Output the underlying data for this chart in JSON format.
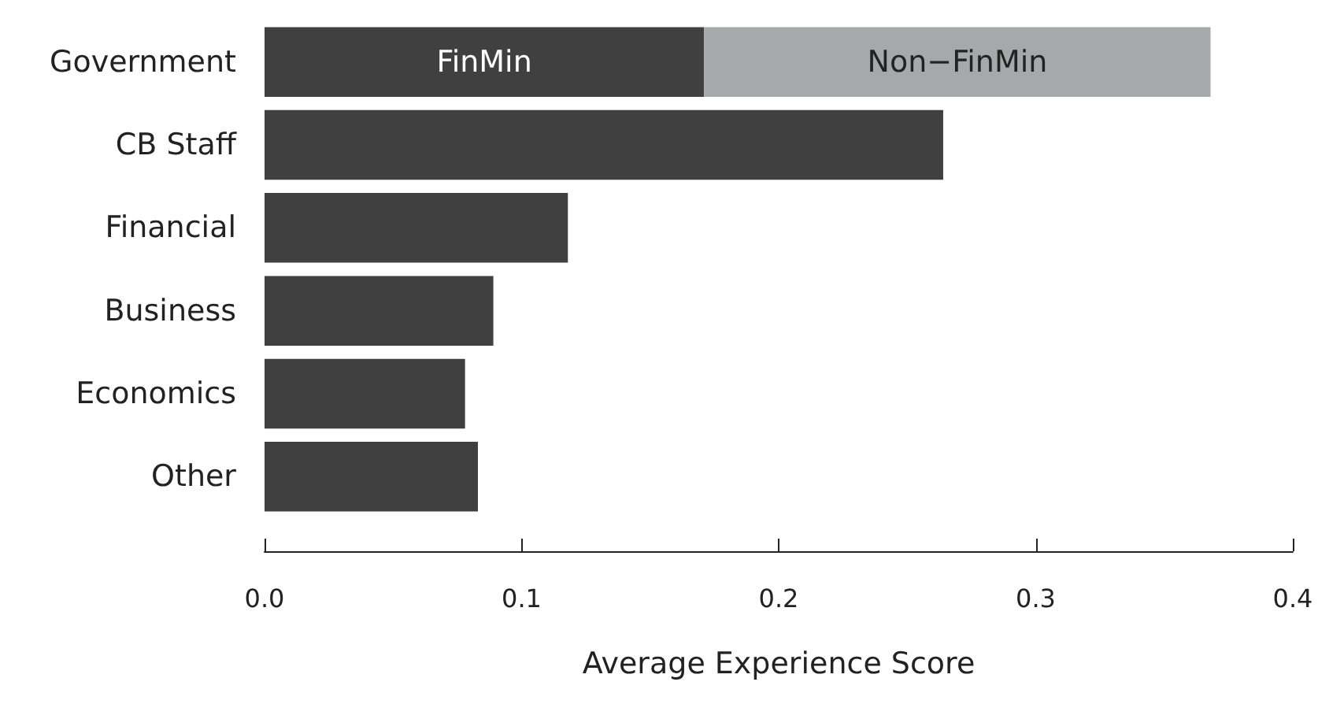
{
  "chart_data": {
    "type": "bar",
    "orientation": "horizontal",
    "stacked": true,
    "categories": [
      "Government",
      "CB Staff",
      "Financial",
      "Business",
      "Economics",
      "Other"
    ],
    "series": [
      {
        "name": "FinMin",
        "color": "#404040",
        "values": [
          0.171,
          0.264,
          0.118,
          0.089,
          0.078,
          0.083
        ]
      },
      {
        "name": "Non−FinMin",
        "color": "#a7a8ab",
        "values": [
          0.197,
          null,
          null,
          null,
          null,
          null
        ]
      }
    ],
    "xlabel": "Average Experience Score",
    "xlim": [
      0.0,
      0.4
    ],
    "xticks": [
      {
        "value": 0,
        "label": "0.0"
      },
      0.1,
      0.2,
      0.3,
      0.4
    ],
    "grid": false,
    "legend": false
  }
}
